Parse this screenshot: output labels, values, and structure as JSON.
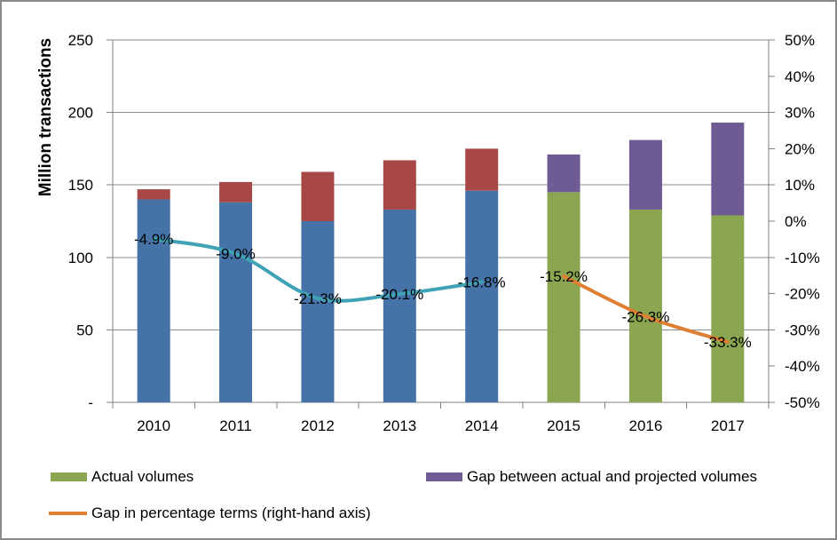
{
  "chart_data": {
    "type": "bar",
    "categories": [
      "2010",
      "2011",
      "2012",
      "2013",
      "2014",
      "2015",
      "2016",
      "2017"
    ],
    "series": [
      {
        "id": "actual-volumes-pre-2015",
        "kind": "bar",
        "stack": "volumes",
        "color": "#4573A7",
        "values": [
          140,
          138,
          125,
          133,
          146,
          null,
          null,
          null
        ]
      },
      {
        "id": "gap-actual-projected-pre-2015",
        "kind": "bar",
        "stack": "volumes",
        "color": "#A84846",
        "values": [
          7,
          14,
          34,
          34,
          29,
          null,
          null,
          null
        ]
      },
      {
        "id": "actual-volumes",
        "kind": "bar",
        "stack": "volumes",
        "color": "#8BA650",
        "values": [
          null,
          null,
          null,
          null,
          null,
          145,
          133,
          129
        ]
      },
      {
        "id": "gap-actual-projected",
        "kind": "bar",
        "stack": "volumes",
        "color": "#6F5B93",
        "values": [
          null,
          null,
          null,
          null,
          null,
          26,
          48,
          64
        ]
      },
      {
        "id": "gap-percentage-pre-2015",
        "kind": "line",
        "axis": "right",
        "color": "#3FA2B5",
        "values": [
          -4.9,
          -9.0,
          -21.3,
          -20.1,
          -16.8,
          null,
          null,
          null
        ],
        "labels": [
          "-4.9%",
          "-9.0%",
          "-21.3%",
          "-20.1%",
          "-16.8%",
          null,
          null,
          null
        ]
      },
      {
        "id": "gap-percentage",
        "kind": "line",
        "axis": "right",
        "color": "#DF7F33",
        "values": [
          null,
          null,
          null,
          null,
          null,
          -15.2,
          -26.3,
          -33.3
        ],
        "labels": [
          null,
          null,
          null,
          null,
          null,
          "-15.2%",
          "-26.3%",
          "-33.3%"
        ]
      }
    ],
    "left_axis": {
      "title": "Million transactions",
      "min": 0,
      "max": 250,
      "tick_labels": [
        "250",
        "200",
        "150",
        "100",
        "50",
        "-"
      ],
      "tick_values": [
        250,
        200,
        150,
        100,
        50,
        0
      ]
    },
    "right_axis": {
      "min": -50,
      "max": 50,
      "tick_labels": [
        "50%",
        "40%",
        "30%",
        "20%",
        "10%",
        "0%",
        "-10%",
        "-20%",
        "-30%",
        "-40%",
        "-50%"
      ],
      "tick_values": [
        50,
        40,
        30,
        20,
        10,
        0,
        -10,
        -20,
        -30,
        -40,
        -50
      ]
    },
    "gridline_values": [
      50,
      100,
      150,
      200,
      250
    ],
    "grid": true,
    "legend_position": "bottom-left",
    "legend": [
      {
        "label": "Actual volumes",
        "swatch": "box",
        "color": "#8BA650"
      },
      {
        "label": "Gap between actual and projected volumes",
        "swatch": "box",
        "color": "#6F5B93"
      },
      {
        "label": "Gap in percentage terms (right-hand axis)",
        "swatch": "line",
        "color": "#DF7F33"
      }
    ]
  }
}
